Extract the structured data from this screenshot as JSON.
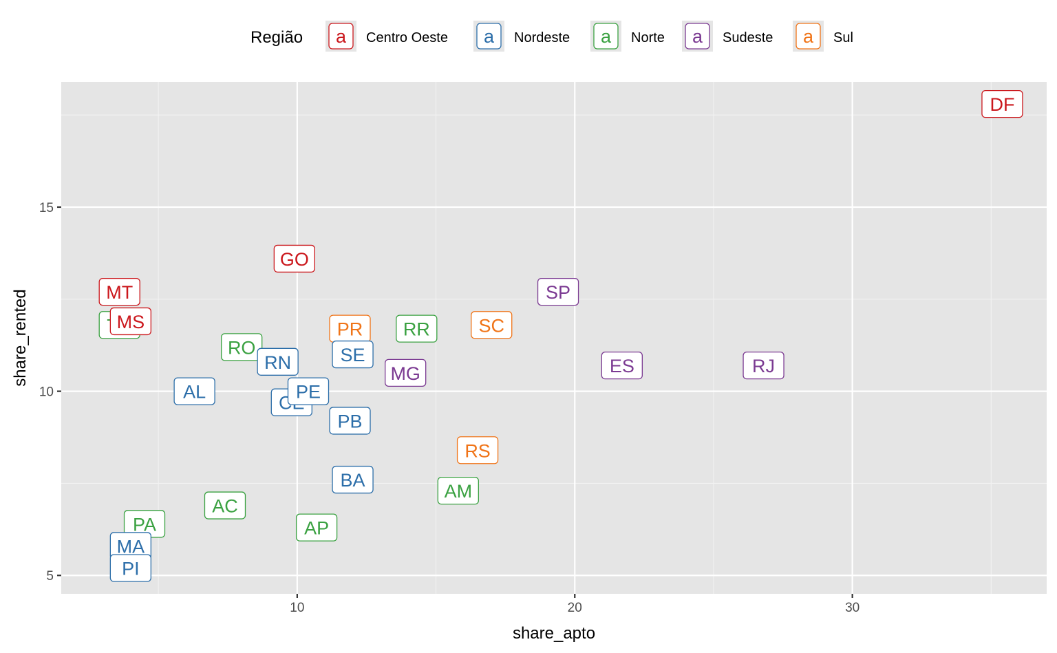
{
  "chart_data": {
    "type": "scatter",
    "xlabel": "share_apto",
    "ylabel": "share_rented",
    "xlim": [
      1.5,
      37
    ],
    "ylim": [
      4.5,
      18.4
    ],
    "x_ticks": [
      10,
      20,
      30
    ],
    "y_ticks": [
      5,
      10,
      15
    ],
    "x_ticks_minor": [
      5,
      15,
      25,
      35
    ],
    "y_ticks_minor": [
      7.5,
      12.5,
      17.5
    ],
    "grid": true,
    "legend": {
      "title": "Região",
      "placement": "top",
      "key_text": "a",
      "entries": [
        {
          "name": "Centro Oeste",
          "color": "#cb181d"
        },
        {
          "name": "Nordeste",
          "color": "#2c6ea9"
        },
        {
          "name": "Norte",
          "color": "#3aa141"
        },
        {
          "name": "Sudeste",
          "color": "#7b3a92"
        },
        {
          "name": "Sul",
          "color": "#f07418"
        }
      ]
    },
    "points": [
      {
        "label": "TO",
        "x": 3.6,
        "y": 11.8,
        "region": "Norte"
      },
      {
        "label": "MT",
        "x": 3.6,
        "y": 12.7,
        "region": "Centro Oeste"
      },
      {
        "label": "MS",
        "x": 4.0,
        "y": 11.9,
        "region": "Centro Oeste"
      },
      {
        "label": "PA",
        "x": 4.5,
        "y": 6.4,
        "region": "Norte"
      },
      {
        "label": "MA",
        "x": 4.0,
        "y": 5.8,
        "region": "Nordeste"
      },
      {
        "label": "PI",
        "x": 4.0,
        "y": 5.2,
        "region": "Nordeste"
      },
      {
        "label": "AL",
        "x": 6.3,
        "y": 10.0,
        "region": "Nordeste"
      },
      {
        "label": "AC",
        "x": 7.4,
        "y": 6.9,
        "region": "Norte"
      },
      {
        "label": "RO",
        "x": 8.0,
        "y": 11.2,
        "region": "Norte"
      },
      {
        "label": "GO",
        "x": 9.9,
        "y": 13.6,
        "region": "Centro Oeste"
      },
      {
        "label": "CE",
        "x": 9.8,
        "y": 9.7,
        "region": "Nordeste"
      },
      {
        "label": "RN",
        "x": 9.3,
        "y": 10.8,
        "region": "Nordeste"
      },
      {
        "label": "PE",
        "x": 10.4,
        "y": 10.0,
        "region": "Nordeste"
      },
      {
        "label": "AP",
        "x": 10.7,
        "y": 6.3,
        "region": "Norte"
      },
      {
        "label": "PR",
        "x": 11.9,
        "y": 11.7,
        "region": "Sul"
      },
      {
        "label": "SE",
        "x": 12.0,
        "y": 11.0,
        "region": "Nordeste"
      },
      {
        "label": "PB",
        "x": 11.9,
        "y": 9.2,
        "region": "Nordeste"
      },
      {
        "label": "BA",
        "x": 12.0,
        "y": 7.6,
        "region": "Nordeste"
      },
      {
        "label": "MG",
        "x": 13.9,
        "y": 10.5,
        "region": "Sudeste"
      },
      {
        "label": "RR",
        "x": 14.3,
        "y": 11.7,
        "region": "Norte"
      },
      {
        "label": "AM",
        "x": 15.8,
        "y": 7.3,
        "region": "Norte"
      },
      {
        "label": "RS",
        "x": 16.5,
        "y": 8.4,
        "region": "Sul"
      },
      {
        "label": "SC",
        "x": 17.0,
        "y": 11.8,
        "region": "Sul"
      },
      {
        "label": "SP",
        "x": 19.4,
        "y": 12.7,
        "region": "Sudeste"
      },
      {
        "label": "ES",
        "x": 21.7,
        "y": 10.7,
        "region": "Sudeste"
      },
      {
        "label": "RJ",
        "x": 26.8,
        "y": 10.7,
        "region": "Sudeste"
      },
      {
        "label": "DF",
        "x": 35.4,
        "y": 17.8,
        "region": "Centro Oeste"
      }
    ]
  }
}
